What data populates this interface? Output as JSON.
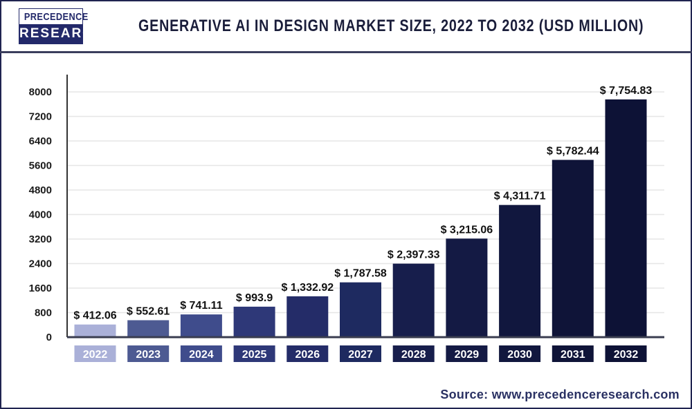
{
  "logo": {
    "line1": "PRECEDENCE",
    "line2": "RESEARCH"
  },
  "source": "Source: www.precedenceresearch.com",
  "chart_data": {
    "type": "bar",
    "title": "GENERATIVE AI IN DESIGN MARKET SIZE, 2022 TO 2032 (USD MILLION)",
    "categories": [
      "2022",
      "2023",
      "2024",
      "2025",
      "2026",
      "2027",
      "2028",
      "2029",
      "2030",
      "2031",
      "2032"
    ],
    "values": [
      412.06,
      552.61,
      741.11,
      993.9,
      1332.92,
      1787.58,
      2397.33,
      3215.06,
      4311.71,
      5782.44,
      7754.83
    ],
    "data_labels": [
      "$ 412.06",
      "$ 552.61",
      "$ 741.11",
      "$ 993.9",
      "$ 1,332.92",
      "$ 1,787.58",
      "$ 2,397.33",
      "$ 3,215.06",
      "$ 4,311.71",
      "$ 5,782.44",
      "$ 7,754.83"
    ],
    "colors": [
      "#aab0d8",
      "#4d5a92",
      "#3f4c8c",
      "#2e3878",
      "#242c68",
      "#1e2a60",
      "#171e4c",
      "#141a44",
      "#11173e",
      "#0f1438",
      "#0d1236"
    ],
    "yticks": [
      0,
      800,
      1600,
      2400,
      3200,
      4000,
      4800,
      5600,
      6400,
      7200,
      8000
    ],
    "ylim": [
      0,
      8000
    ],
    "xlabel": "",
    "ylabel": "",
    "grid": true,
    "legend": "none"
  }
}
